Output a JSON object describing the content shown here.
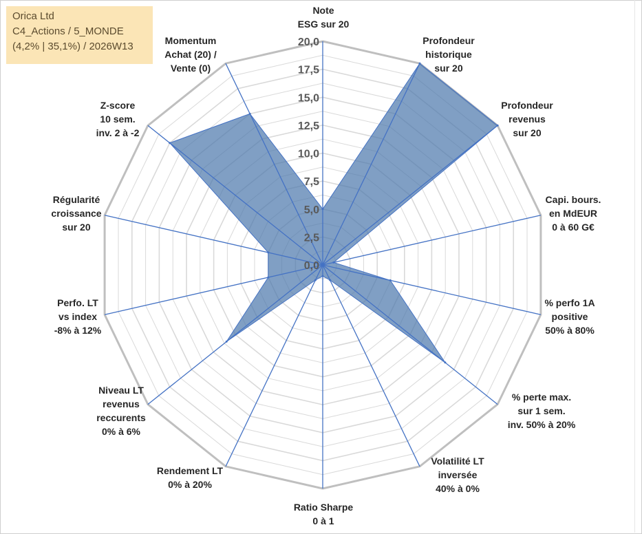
{
  "header": {
    "line1": "Orica Ltd",
    "line2": "C4_Actions / 5_MONDE",
    "line3": "(4,2% | 35,1%) / 2026W13"
  },
  "chart_data": {
    "type": "radar",
    "rmin": 0,
    "rmax": 20,
    "ticks": [
      "0,0",
      "2,5",
      "5,0",
      "7,5",
      "10,0",
      "12,5",
      "15,0",
      "17,5",
      "20,0"
    ],
    "gridlines": true,
    "colors": {
      "fill": "#4a76ab",
      "fill_opacity": 0.7,
      "stroke": "#4472c4",
      "spoke": "#4472c4",
      "grid": "#d9d9d9",
      "outer": "#bfbfbf"
    },
    "axes": [
      {
        "label": [
          "Note",
          "ESG sur 20"
        ],
        "value": 5.0
      },
      {
        "label": [
          "Profondeur",
          "historique",
          "sur 20"
        ],
        "value": 20.0
      },
      {
        "label": [
          "Profondeur",
          "revenus",
          "sur 20"
        ],
        "value": 20.0
      },
      {
        "label": [
          "Capi. bours.",
          "en MdEUR",
          "0 à 60 G€"
        ],
        "value": 1.0
      },
      {
        "label": [
          "% perfo 1A",
          "positive",
          "50% à 80%"
        ],
        "value": 6.2
      },
      {
        "label": [
          "% perte max.",
          "sur 1 sem.",
          "inv. 50% à 20%"
        ],
        "value": 14.0
      },
      {
        "label": [
          "Volatilité LT",
          "inversée",
          "40% à 0%"
        ],
        "value": 1.5
      },
      {
        "label": [
          "Ratio Sharpe",
          "0 à 1"
        ],
        "value": 1.0
      },
      {
        "label": [
          "Rendement LT",
          "0% à 20%"
        ],
        "value": 1.5
      },
      {
        "label": [
          "Niveau LT",
          "revenus",
          "reccurents",
          "0% à 6%"
        ],
        "value": 11.0
      },
      {
        "label": [
          "Perfo. LT",
          "vs index",
          "-8% à 12%"
        ],
        "value": 5.0
      },
      {
        "label": [
          "Régularité",
          "croissance",
          "sur 20"
        ],
        "value": 5.0
      },
      {
        "label": [
          "Z-score",
          "10 sem.",
          "inv. 2 à -2"
        ],
        "value": 17.5
      },
      {
        "label": [
          "Momentum",
          "Achat (20) /",
          "Vente (0)"
        ],
        "value": 15.0
      }
    ]
  }
}
